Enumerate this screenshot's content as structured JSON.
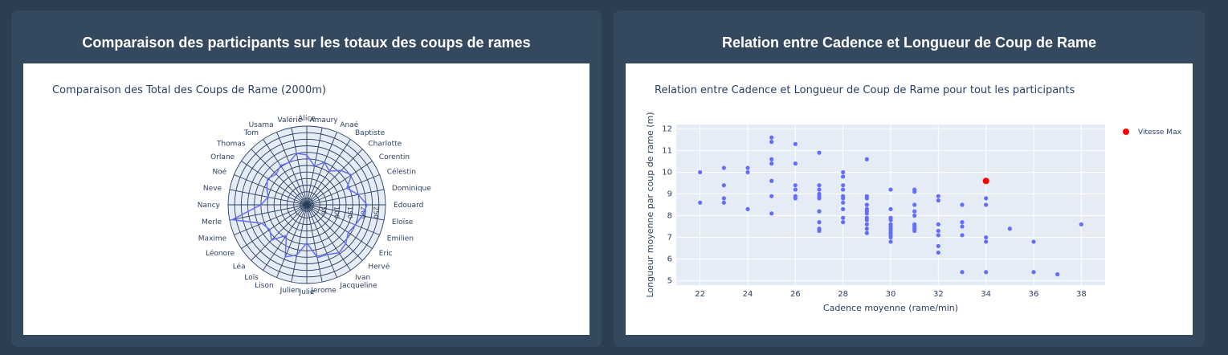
{
  "left_card": {
    "title": "Comparaison des participants sur les totaux des coups de rames",
    "plot_title": "Comparaison des Total des Coups de Rame (2000m)"
  },
  "right_card": {
    "title": "Relation entre Cadence et Longueur de Coup de Rame",
    "plot_title": "Relation entre Cadence et Longueur de Coup de Rame pour tout les participants"
  },
  "colors": {
    "page_bg": "#2c3e50",
    "card_bg": "#34495e",
    "plot_bg": "#e5ecf6",
    "series": "#636efa",
    "highlight": "#ff0000"
  },
  "chart_data": [
    {
      "type": "radar",
      "title": "Comparaison des Total des Coups de Rame (2000m)",
      "categories": [
        "Alice",
        "Amaury",
        "Anaé",
        "Baptiste",
        "Charlotte",
        "Corentin",
        "Célestin",
        "Dominique",
        "Edouard",
        "Eloïse",
        "Emilien",
        "Eric",
        "Hervé",
        "Ivan",
        "Jacqueline",
        "Jerome",
        "Julie",
        "Julien",
        "Lison",
        "Loïs",
        "Léa",
        "Léonore",
        "Maxime",
        "Merle",
        "Nancy",
        "Neve",
        "Noé",
        "Orlane",
        "Thomas",
        "Tom",
        "Usama",
        "Valérie"
      ],
      "values": [
        190,
        150,
        175,
        155,
        185,
        205,
        165,
        200,
        230,
        215,
        200,
        190,
        210,
        220,
        205,
        205,
        145,
        195,
        215,
        140,
        190,
        170,
        185,
        290,
        175,
        150,
        165,
        180,
        165,
        180,
        175,
        200
      ],
      "radial_range": [
        0,
        300
      ],
      "radial_ticks": [
        0,
        25,
        50,
        75,
        100,
        125,
        150,
        175,
        200,
        225,
        250,
        275,
        300
      ],
      "radial_tick_labels": [
        "50",
        "100",
        "150",
        "200",
        "250"
      ]
    },
    {
      "type": "scatter",
      "title": "Relation entre Cadence et Longueur de Coup de Rame pour tout les participants",
      "xlabel": "Cadence moyenne (rame/min)",
      "ylabel": "Longueur moyenne par coup de rame (m)",
      "xlim": [
        21,
        39
      ],
      "ylim": [
        4.8,
        12.2
      ],
      "xticks": [
        22,
        24,
        26,
        28,
        30,
        32,
        34,
        36,
        38
      ],
      "yticks": [
        5,
        6,
        7,
        8,
        9,
        10,
        11,
        12
      ],
      "series": [
        {
          "points": [
            [
              22,
              10
            ],
            [
              22,
              8.6
            ],
            [
              23,
              10.2
            ],
            [
              23,
              9.4
            ],
            [
              23,
              8.8
            ],
            [
              23,
              8.6
            ],
            [
              24,
              10.2
            ],
            [
              24,
              10
            ],
            [
              24,
              8.3
            ],
            [
              25,
              11.6
            ],
            [
              25,
              11.4
            ],
            [
              25,
              10.6
            ],
            [
              25,
              10.4
            ],
            [
              25,
              9.6
            ],
            [
              25,
              8.9
            ],
            [
              25,
              8.1
            ],
            [
              26,
              11.3
            ],
            [
              26,
              10.4
            ],
            [
              26,
              9.4
            ],
            [
              26,
              9.2
            ],
            [
              26,
              8.9
            ],
            [
              26,
              8.8
            ],
            [
              27,
              10.9
            ],
            [
              27,
              9.4
            ],
            [
              27,
              9.2
            ],
            [
              27,
              9.0
            ],
            [
              27,
              8.9
            ],
            [
              27,
              8.8
            ],
            [
              27,
              8.2
            ],
            [
              27,
              7.7
            ],
            [
              27,
              7.4
            ],
            [
              27,
              7.3
            ],
            [
              28,
              10
            ],
            [
              28,
              9.8
            ],
            [
              28,
              9.4
            ],
            [
              28,
              9.2
            ],
            [
              28,
              8.9
            ],
            [
              28,
              8.8
            ],
            [
              28,
              8.6
            ],
            [
              28,
              8.3
            ],
            [
              28,
              7.9
            ],
            [
              28,
              7.7
            ],
            [
              29,
              10.6
            ],
            [
              29,
              8.9
            ],
            [
              29,
              8.8
            ],
            [
              29,
              8.5
            ],
            [
              29,
              8.3
            ],
            [
              29,
              8.2
            ],
            [
              29,
              8.1
            ],
            [
              29,
              7.9
            ],
            [
              29,
              7.8
            ],
            [
              29,
              7.6
            ],
            [
              29,
              7.4
            ],
            [
              29,
              7.2
            ],
            [
              30,
              9.2
            ],
            [
              30,
              8.3
            ],
            [
              30,
              7.9
            ],
            [
              30,
              7.8
            ],
            [
              30,
              7.6
            ],
            [
              30,
              7.5
            ],
            [
              30,
              7.4
            ],
            [
              30,
              7.3
            ],
            [
              30,
              7.2
            ],
            [
              30,
              7.1
            ],
            [
              30,
              7.0
            ],
            [
              30,
              6.8
            ],
            [
              31,
              9.2
            ],
            [
              31,
              9.1
            ],
            [
              31,
              8.5
            ],
            [
              31,
              8.2
            ],
            [
              31,
              8.0
            ],
            [
              31,
              7.6
            ],
            [
              31,
              7.5
            ],
            [
              31,
              7.4
            ],
            [
              31,
              7.3
            ],
            [
              32,
              8.9
            ],
            [
              32,
              8.7
            ],
            [
              32,
              7.6
            ],
            [
              32,
              7.3
            ],
            [
              32,
              7.1
            ],
            [
              32,
              6.6
            ],
            [
              32,
              6.3
            ],
            [
              33,
              8.5
            ],
            [
              33,
              7.7
            ],
            [
              33,
              7.5
            ],
            [
              33,
              7.1
            ],
            [
              33,
              5.4
            ],
            [
              34,
              8.8
            ],
            [
              34,
              8.5
            ],
            [
              34,
              7.0
            ],
            [
              34,
              6.8
            ],
            [
              34,
              5.4
            ],
            [
              35,
              7.4
            ],
            [
              36,
              6.8
            ],
            [
              36,
              5.4
            ],
            [
              37,
              5.3
            ],
            [
              38,
              7.6
            ]
          ]
        },
        {
          "name": "Vitesse Max",
          "points": [
            [
              34,
              9.6
            ]
          ]
        }
      ]
    }
  ]
}
